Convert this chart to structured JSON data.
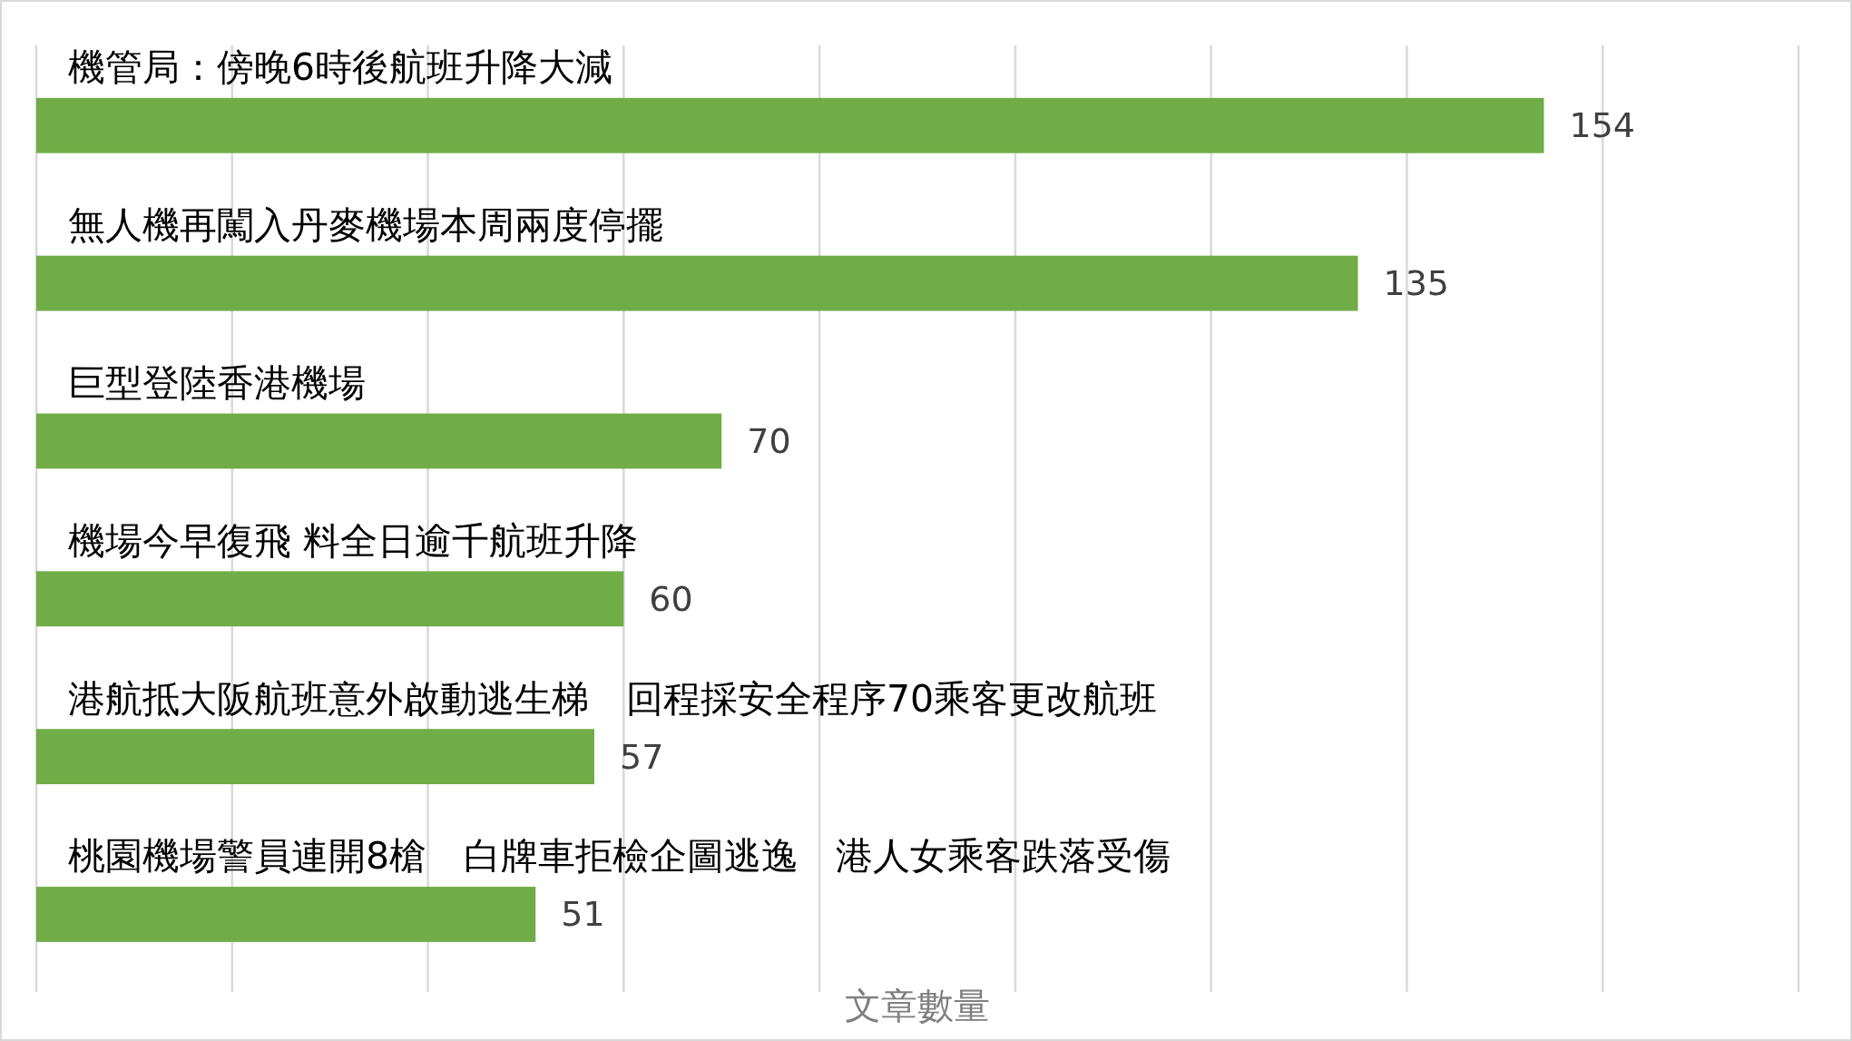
{
  "chart_data": {
    "type": "bar",
    "orientation": "horizontal",
    "xlabel": "文章數量",
    "categories": [
      "機管局：傍晚6時後航班升降大減",
      "無人機再闖入丹麥機場本周兩度停擺",
      "巨型登陸香港機場",
      "機場今早復飛 料全日逾千航班升降",
      "港航抵大阪航班意外啟動逃生梯　回程採安全程序70乘客更改航班",
      "桃園機場警員連開8槍　白牌車拒檢企圖逃逸　港人女乘客跌落受傷"
    ],
    "values": [
      154,
      135,
      70,
      60,
      57,
      51
    ],
    "color": "#70ad47",
    "data_labels": true,
    "grid": "x",
    "xlim": [
      0,
      180
    ],
    "xticks": [
      {
        "value": 0,
        "label": null
      },
      {
        "value": 20,
        "label": null
      },
      {
        "value": 40,
        "label": null
      },
      {
        "value": 60,
        "label": null
      },
      {
        "value": 80,
        "label": null
      },
      {
        "value": 100,
        "label": null
      },
      {
        "value": 120,
        "label": null
      },
      {
        "value": 140,
        "label": null
      },
      {
        "value": 160,
        "label": null
      },
      {
        "value": 180,
        "label": null
      }
    ]
  }
}
